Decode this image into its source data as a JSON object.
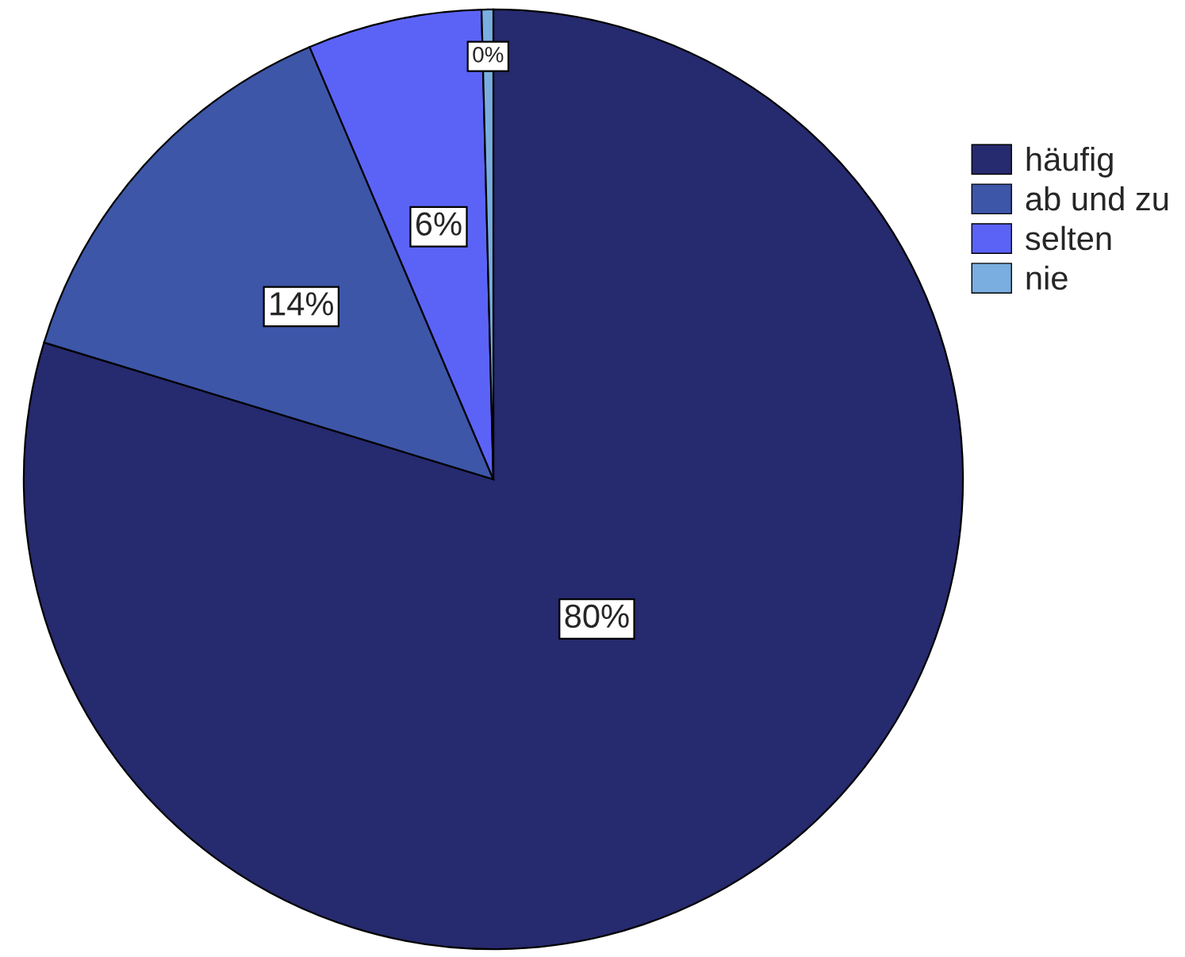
{
  "chart_data": {
    "type": "pie",
    "categories": [
      "häufig",
      "ab und zu",
      "selten",
      "nie"
    ],
    "values": [
      79.7,
      13.9,
      6.0,
      0.4
    ],
    "value_labels": [
      "80%",
      "14%",
      "6%",
      "0%"
    ],
    "colors": [
      "#262a6e",
      "#3d56a8",
      "#5b63f7",
      "#7aaee0"
    ],
    "legend": "right"
  }
}
